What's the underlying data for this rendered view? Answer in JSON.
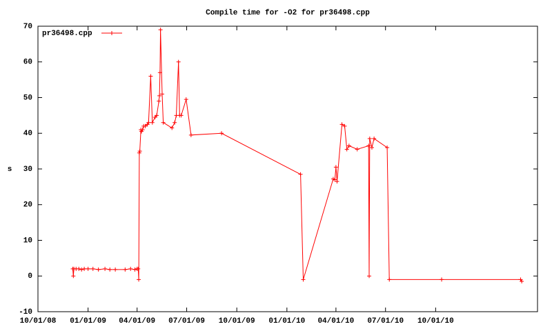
{
  "chart_data": {
    "type": "line",
    "title": "Compile time for -O2 for pr36498.cpp",
    "y_label": "s",
    "x": [
      "12/04/08",
      "12/05/08",
      "12/06/08",
      "12/10/08",
      "12/15/08",
      "12/20/08",
      "12/25/08",
      "01/01/09",
      "01/10/09",
      "01/20/09",
      "02/01/09",
      "02/10/09",
      "02/20/09",
      "03/10/09",
      "03/20/09",
      "03/28/09",
      "04/01/09",
      "04/03/09",
      "04/04/09",
      "04/05/09",
      "04/06/09",
      "04/08/09",
      "04/09/09",
      "04/11/09",
      "04/13/09",
      "04/16/09",
      "04/20/09",
      "04/22/09",
      "04/26/09",
      "04/29/09",
      "05/04/09",
      "05/07/09",
      "05/11/09",
      "05/12/09",
      "05/13/09",
      "05/14/09",
      "05/17/09",
      "05/19/09",
      "06/04/09",
      "06/09/09",
      "06/12/09",
      "06/16/09",
      "06/18/09",
      "06/21/09",
      "06/30/09",
      "07/09/09",
      "09/03/09",
      "01/26/10",
      "01/31/10",
      "03/27/10",
      "03/30/10",
      "04/01/10",
      "04/03/10",
      "04/12/10",
      "04/17/10",
      "04/21/10",
      "04/25/10",
      "05/10/10",
      "05/31/10",
      "06/01/10",
      "06/02/10",
      "06/06/10",
      "06/10/10",
      "07/04/10",
      "07/08/10",
      "10/12/10",
      "03/06/11",
      "03/08/11"
    ],
    "series": [
      {
        "name": "pr36498.cpp",
        "color": "#ff0000",
        "values": [
          2,
          0,
          2,
          2,
          2,
          1.8,
          2,
          2,
          2,
          1.8,
          2,
          1.8,
          1.8,
          1.8,
          2,
          1.8,
          2,
          2,
          -1,
          34.5,
          35,
          41,
          40.5,
          41,
          42,
          42,
          42.5,
          43,
          56,
          43,
          44.5,
          45,
          49,
          50.5,
          57,
          69,
          51,
          43,
          41.5,
          43,
          45,
          60,
          45,
          45,
          49.5,
          39.5,
          40,
          28.5,
          -1,
          27.2,
          27,
          30.5,
          26.5,
          42.5,
          42,
          35.5,
          36.5,
          35.5,
          36.5,
          0,
          38.5,
          36,
          38.5,
          36,
          -1,
          -1,
          -1,
          -1.5
        ]
      }
    ],
    "xlim": [
      "10/01/08",
      "04/06/11"
    ],
    "xticks": [
      "10/01/08",
      "01/01/09",
      "04/01/09",
      "07/01/09",
      "10/01/09",
      "01/01/10",
      "04/01/10",
      "07/01/10",
      "10/01/10"
    ],
    "ylim": [
      -10,
      70
    ],
    "yticks": [
      -10,
      0,
      10,
      20,
      30,
      40,
      50,
      60,
      70
    ],
    "legend": "top-left"
  }
}
